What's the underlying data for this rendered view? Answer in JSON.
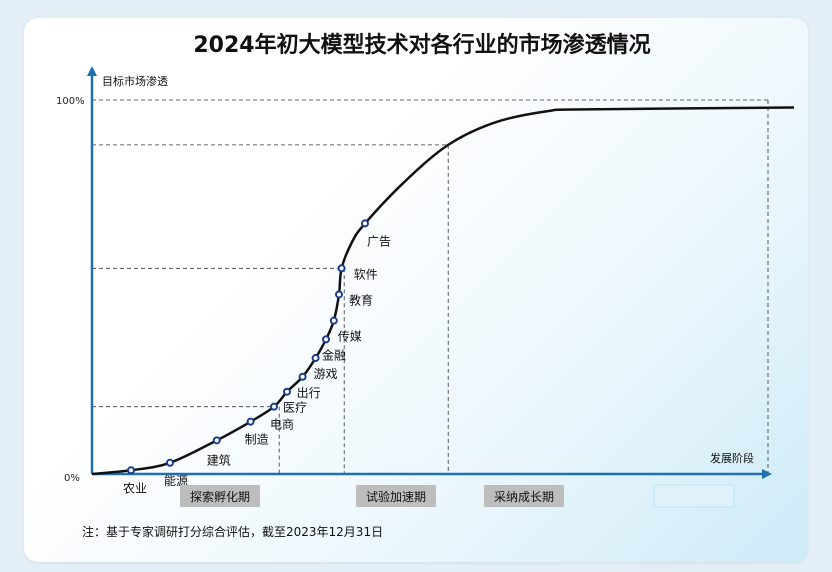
{
  "chart_data": {
    "type": "line",
    "title": "2024年初大模型技术对各行业的市场渗透情况",
    "ylabel": "目标市场渗透",
    "xlabel": "发展阶段",
    "y_ticks": [
      "0%",
      "100%"
    ],
    "ylim": [
      0,
      100
    ],
    "curve": "s-curve",
    "points": [
      {
        "label": "农业",
        "x": 0.15,
        "y": 1
      },
      {
        "label": "能源",
        "x": 0.3,
        "y": 3
      },
      {
        "label": "建筑",
        "x": 0.48,
        "y": 9
      },
      {
        "label": "制造",
        "x": 0.61,
        "y": 14
      },
      {
        "label": "电商",
        "x": 0.7,
        "y": 18
      },
      {
        "label": "医疗",
        "x": 0.75,
        "y": 22
      },
      {
        "label": "出行",
        "x": 0.81,
        "y": 26
      },
      {
        "label": "游戏",
        "x": 0.86,
        "y": 31
      },
      {
        "label": "金融",
        "x": 0.9,
        "y": 36
      },
      {
        "label": "传媒",
        "x": 0.93,
        "y": 41
      },
      {
        "label": "教育",
        "x": 0.95,
        "y": 48
      },
      {
        "label": "软件",
        "x": 0.96,
        "y": 55
      },
      {
        "label": "广告",
        "x": 1.05,
        "y": 67
      }
    ],
    "stages": [
      {
        "label": "探索孵化期",
        "x_end": 0.72
      },
      {
        "label": "试验加速期",
        "x_end": 0.97
      },
      {
        "label": "采纳成长期",
        "x_end": 1.37
      },
      {
        "label": "",
        "x_end": 1.9
      }
    ],
    "reference_lines_y": [
      18,
      55,
      88,
      100
    ],
    "note": "注：基于专家调研打分综合评估，截至2023年12月31日"
  },
  "colors": {
    "axis": "#1f6fb3",
    "curve": "#111111",
    "point_stroke": "#1a3c8a",
    "stage_bg": "#bdbdbd"
  }
}
